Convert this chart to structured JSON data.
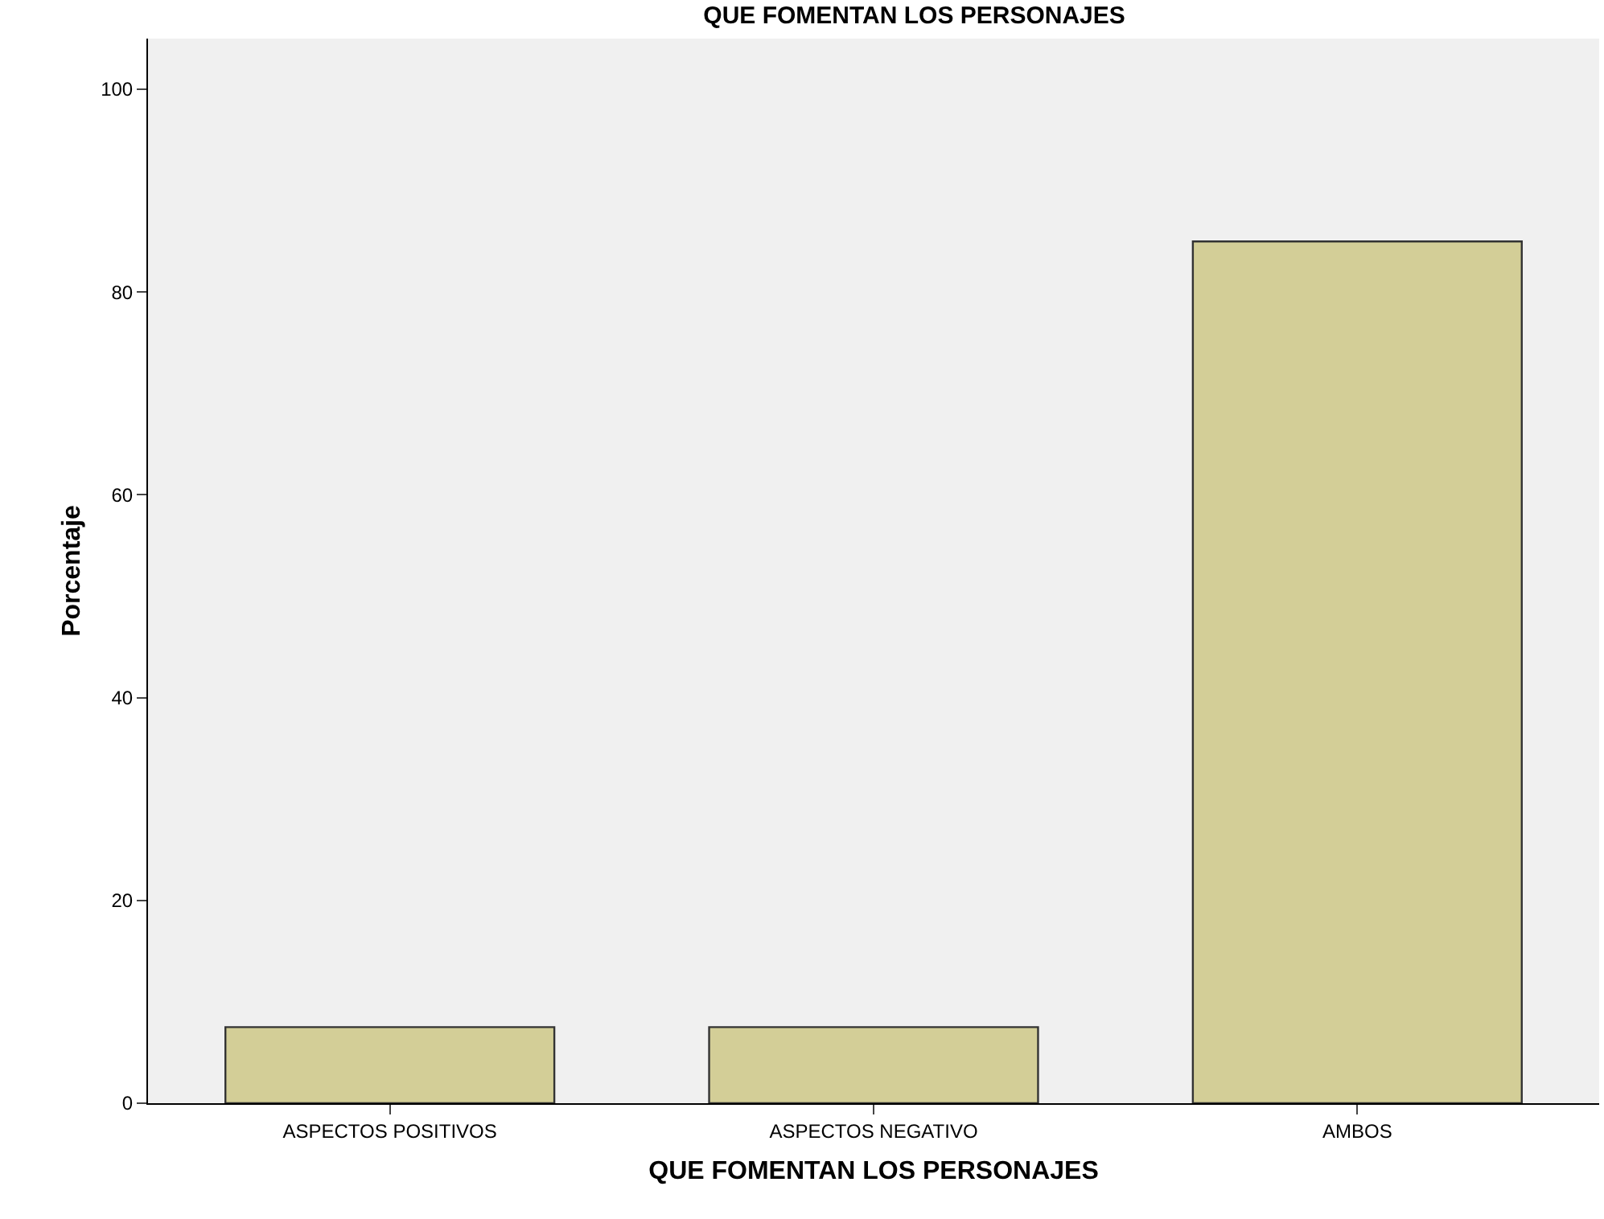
{
  "chart_data": {
    "type": "bar",
    "title": "QUE FOMENTAN LOS PERSONAJES",
    "xlabel": "QUE FOMENTAN LOS PERSONAJES",
    "ylabel": "Porcentaje",
    "categories": [
      "ASPECTOS POSITIVOS",
      "ASPECTOS NEGATIVO",
      "AMBOS"
    ],
    "values": [
      7.5,
      7.5,
      85
    ],
    "color": "#d3ce97",
    "ylim": [
      0,
      105
    ],
    "yticks": [
      0,
      20,
      40,
      60,
      80,
      100
    ],
    "grid": false,
    "legend": false
  }
}
